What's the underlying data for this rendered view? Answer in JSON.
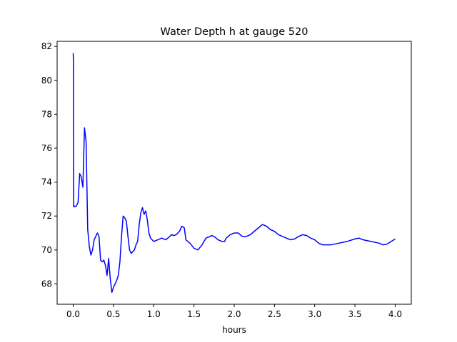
{
  "chart_data": {
    "type": "line",
    "title": "Water Depth h at gauge 520",
    "xlabel": "hours",
    "ylabel": "",
    "xlim": [
      -0.2,
      4.2
    ],
    "ylim": [
      66.8,
      82.3
    ],
    "xticks": [
      0.0,
      0.5,
      1.0,
      1.5,
      2.0,
      2.5,
      3.0,
      3.5,
      4.0
    ],
    "xtick_labels": [
      "0.0",
      "0.5",
      "1.0",
      "1.5",
      "2.0",
      "2.5",
      "3.0",
      "3.5",
      "4.0"
    ],
    "yticks": [
      68,
      70,
      72,
      74,
      76,
      78,
      80,
      82
    ],
    "ytick_labels": [
      "68",
      "70",
      "72",
      "74",
      "76",
      "78",
      "80",
      "82"
    ],
    "grid": false,
    "series": [
      {
        "color": "#0000ff",
        "x": [
          0.0,
          0.002,
          0.005,
          0.008,
          0.012,
          0.02,
          0.04,
          0.06,
          0.08,
          0.1,
          0.12,
          0.14,
          0.16,
          0.18,
          0.2,
          0.22,
          0.24,
          0.26,
          0.28,
          0.3,
          0.32,
          0.34,
          0.36,
          0.38,
          0.4,
          0.42,
          0.44,
          0.46,
          0.48,
          0.5,
          0.52,
          0.54,
          0.56,
          0.58,
          0.6,
          0.62,
          0.64,
          0.66,
          0.68,
          0.7,
          0.72,
          0.74,
          0.76,
          0.78,
          0.8,
          0.82,
          0.84,
          0.86,
          0.88,
          0.9,
          0.92,
          0.94,
          0.96,
          0.98,
          1.0,
          1.05,
          1.1,
          1.15,
          1.2,
          1.22,
          1.25,
          1.28,
          1.3,
          1.32,
          1.35,
          1.38,
          1.4,
          1.45,
          1.5,
          1.55,
          1.6,
          1.65,
          1.7,
          1.72,
          1.75,
          1.8,
          1.85,
          1.88,
          1.9,
          1.95,
          2.0,
          2.05,
          2.1,
          2.15,
          2.2,
          2.25,
          2.3,
          2.35,
          2.4,
          2.45,
          2.5,
          2.55,
          2.6,
          2.65,
          2.7,
          2.75,
          2.8,
          2.85,
          2.9,
          2.95,
          3.0,
          3.05,
          3.1,
          3.2,
          3.3,
          3.4,
          3.5,
          3.55,
          3.6,
          3.7,
          3.8,
          3.85,
          3.9,
          3.95,
          4.0
        ],
        "y": [
          81.6,
          81.2,
          72.6,
          72.55,
          72.6,
          72.55,
          72.6,
          72.8,
          74.5,
          74.3,
          73.7,
          77.2,
          76.4,
          71.2,
          70.2,
          69.7,
          70.0,
          70.6,
          70.8,
          71.0,
          70.8,
          69.4,
          69.3,
          69.4,
          69.1,
          68.5,
          69.5,
          68.3,
          67.5,
          67.8,
          68.0,
          68.2,
          68.5,
          69.3,
          70.8,
          72.0,
          71.9,
          71.7,
          70.8,
          70.0,
          69.8,
          69.9,
          70.0,
          70.3,
          70.5,
          71.5,
          72.2,
          72.5,
          72.1,
          72.3,
          71.8,
          71.0,
          70.7,
          70.6,
          70.5,
          70.6,
          70.7,
          70.6,
          70.8,
          70.9,
          70.85,
          70.9,
          71.0,
          71.1,
          71.4,
          71.3,
          70.6,
          70.4,
          70.1,
          70.0,
          70.3,
          70.7,
          70.8,
          70.85,
          70.8,
          70.6,
          70.5,
          70.5,
          70.7,
          70.9,
          71.0,
          71.0,
          70.8,
          70.8,
          70.9,
          71.1,
          71.3,
          71.5,
          71.4,
          71.2,
          71.1,
          70.9,
          70.8,
          70.7,
          70.6,
          70.65,
          70.8,
          70.9,
          70.85,
          70.7,
          70.6,
          70.4,
          70.3,
          70.3,
          70.4,
          70.5,
          70.65,
          70.7,
          70.6,
          70.5,
          70.4,
          70.3,
          70.35,
          70.5,
          70.65
        ],
        "comment": ""
      }
    ]
  }
}
